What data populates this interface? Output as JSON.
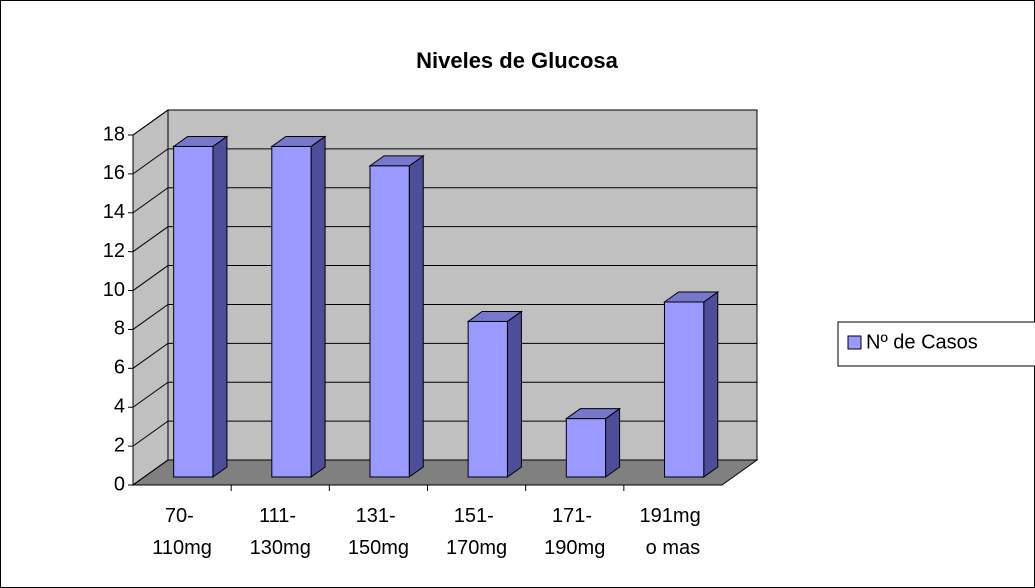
{
  "chart_data": {
    "type": "bar3d",
    "title": "Niveles de Glucosa",
    "categories": [
      "70- 110mg",
      "111- 130mg",
      "131- 150mg",
      "151- 170mg",
      "171- 190mg",
      "191mg o mas"
    ],
    "series": [
      {
        "name": "Nº de Casos",
        "color": "#9999ff",
        "values": [
          17,
          17,
          16,
          8,
          3,
          9
        ]
      }
    ],
    "ylim": [
      0,
      18
    ],
    "yticks": [
      0,
      2,
      4,
      6,
      8,
      10,
      12,
      14,
      16,
      18
    ],
    "grid": true,
    "legend": "right"
  }
}
